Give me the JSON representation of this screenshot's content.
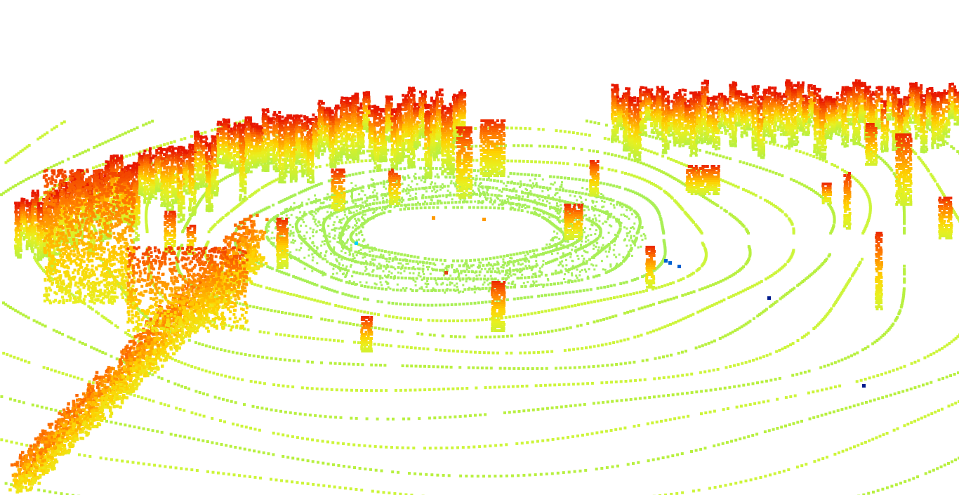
{
  "view": {
    "kind": "lidar-point-cloud",
    "background": "#ffffff",
    "colormap": "jet",
    "color_by": "height",
    "palette": {
      "ground": "#b8f040",
      "ground_light": "#cdf53a",
      "low": "#e8f020",
      "mid": "#ffd000",
      "high": "#ff7a00",
      "top": "#e81800",
      "sparse_low": "#00d0ff",
      "sparse_mid": "#0060d0",
      "sparse_deep": "#001a8c"
    }
  }
}
